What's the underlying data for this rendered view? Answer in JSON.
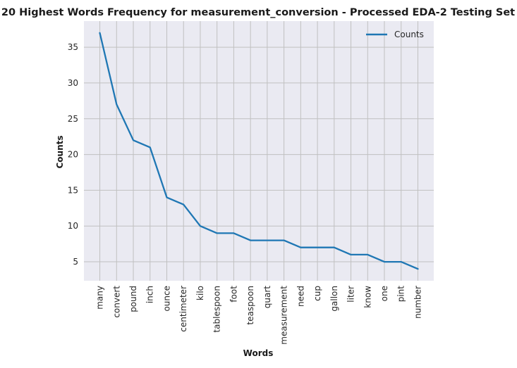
{
  "chart_data": {
    "type": "line",
    "title": "20 Highest Words Frequency for measurement_conversion - Processed EDA-2 Testing Set",
    "xlabel": "Words",
    "ylabel": "Counts",
    "categories": [
      "many",
      "convert",
      "pound",
      "inch",
      "ounce",
      "centimeter",
      "kilo",
      "tablespoon",
      "foot",
      "teaspoon",
      "quart",
      "measurement",
      "need",
      "cup",
      "gallon",
      "liter",
      "know",
      "one",
      "pint",
      "number"
    ],
    "series": [
      {
        "name": "Counts",
        "values": [
          37,
          27,
          22,
          21,
          14,
          13,
          10,
          9,
          9,
          8,
          8,
          8,
          7,
          7,
          7,
          6,
          6,
          5,
          5,
          4
        ],
        "color": "#1f77b4"
      }
    ],
    "ylim": [
      2.35,
      38.65
    ],
    "yticks": [
      5,
      10,
      15,
      20,
      25,
      30,
      35
    ],
    "grid": true,
    "legend_position": "top-right",
    "background_color": "#eaeaf2",
    "grid_color": "#c0c0c0"
  }
}
